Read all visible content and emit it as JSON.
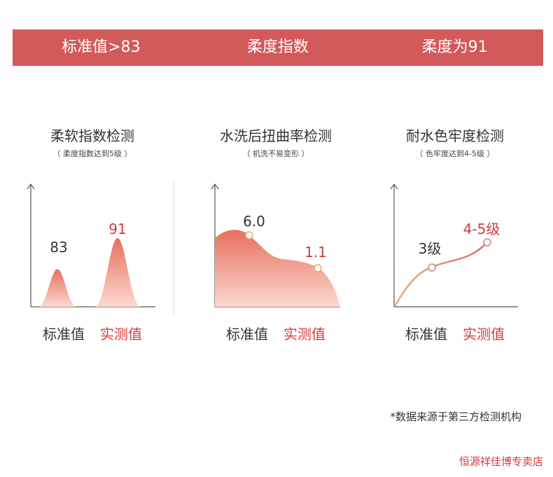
{
  "banner": {
    "left": "标准值>83",
    "center": "柔度指数",
    "right": "柔度为91"
  },
  "legend": {
    "standard": "标准值",
    "actual": "实测值"
  },
  "colors": {
    "banner": "#d35a5a",
    "accent": "#d33a3a",
    "fill_dark": "#e8705f",
    "fill_light": "#fbd9cf"
  },
  "footnote": "*数据来源于第三方检测机构",
  "store": "恒源祥佳博专卖店",
  "chart_data": [
    {
      "type": "area",
      "title": "柔软指数检测",
      "subtitle": "（ 柔度指数达到5级 ）",
      "categories": [
        "标准值",
        "实测值"
      ],
      "values": [
        83,
        91
      ],
      "value_labels": [
        "83",
        "91"
      ]
    },
    {
      "type": "area",
      "title": "水洗后扭曲率检测",
      "subtitle": "（ 机洗不易变形 ）",
      "categories": [
        "标准值",
        "实测值"
      ],
      "values": [
        6.0,
        1.1
      ],
      "value_labels": [
        "6.0",
        "1.1"
      ]
    },
    {
      "type": "line",
      "title": "耐水色牢度检测",
      "subtitle": "（ 色牢度达到4-5级 ）",
      "categories": [
        "标准值",
        "实测值"
      ],
      "values": [
        3,
        4.5
      ],
      "value_labels": [
        "3级",
        "4-5级"
      ]
    }
  ]
}
